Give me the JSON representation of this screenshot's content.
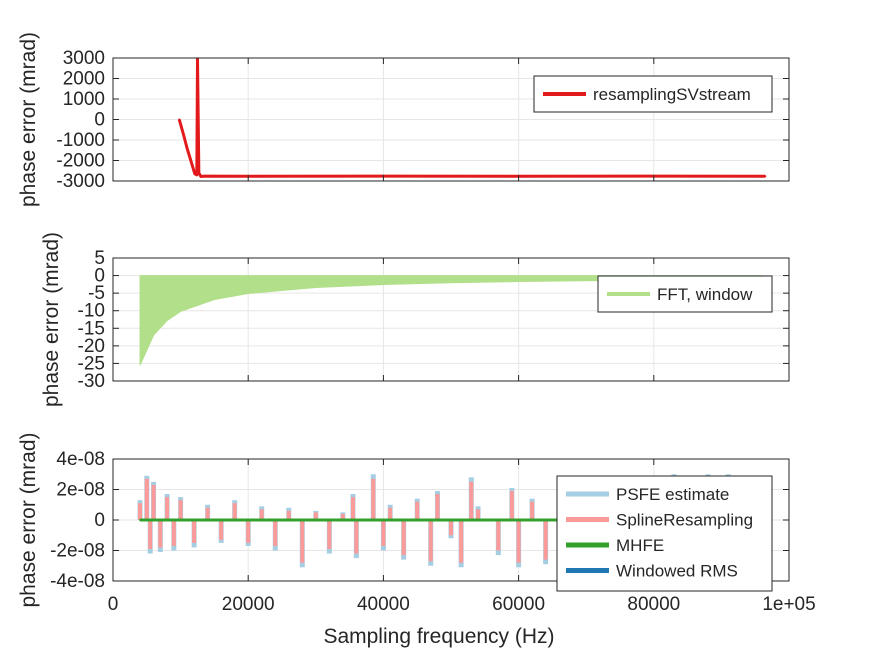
{
  "chart_data": [
    {
      "type": "line",
      "ylabel": "phase error (mrad)",
      "xlabel": "",
      "xlim": [
        0,
        100000
      ],
      "ylim": [
        -3000,
        3000
      ],
      "yticks": [
        3000,
        2000,
        1000,
        0,
        -1000,
        -2000,
        -3000
      ],
      "yticklabels": [
        "3000",
        "2000",
        "1000",
        "0",
        "-1000",
        "-2000",
        "-3000"
      ],
      "grid": true,
      "legend_position": "top-right",
      "series": [
        {
          "name": "resamplingSVstream",
          "color": "#e31a1c",
          "x": [
            9800,
            10400,
            11000,
            11600,
            12100,
            12400,
            12500,
            12700,
            13000,
            13500,
            20000,
            40000,
            60000,
            80000,
            96500
          ],
          "y": [
            0,
            -700,
            -1450,
            -2100,
            -2650,
            -2700,
            2950,
            -2600,
            -2780,
            -2760,
            -2770,
            -2760,
            -2770,
            -2760,
            -2770
          ]
        }
      ]
    },
    {
      "type": "area",
      "ylabel": "phase error (mrad)",
      "xlabel": "",
      "xlim": [
        0,
        100000
      ],
      "ylim": [
        -30,
        5
      ],
      "yticks": [
        5,
        0,
        -5,
        -10,
        -15,
        -20,
        -25,
        -30
      ],
      "yticklabels": [
        "5",
        "0",
        "-5",
        "-10",
        "-15",
        "-20",
        "-25",
        "-30"
      ],
      "grid": true,
      "legend_position": "right",
      "series": [
        {
          "name": "FFT, window",
          "color": "#b2df8a",
          "x": [
            4000,
            6000,
            8000,
            10000,
            15000,
            20000,
            30000,
            40000,
            50000,
            60000,
            70000,
            80000,
            96000
          ],
          "y": [
            -25.5,
            -17,
            -12.8,
            -10.2,
            -6.8,
            -5.1,
            -3.4,
            -2.55,
            -2.04,
            -1.7,
            -1.46,
            -1.28,
            -1.06
          ]
        }
      ]
    },
    {
      "type": "line",
      "ylabel": "phase error (mrad)",
      "xlabel": "Sampling frequency (Hz)",
      "xlim": [
        0,
        100000
      ],
      "ylim": [
        -4e-08,
        4e-08
      ],
      "xticks": [
        0,
        20000,
        40000,
        60000,
        80000,
        100000
      ],
      "xticklabels": [
        "0",
        "20000",
        "40000",
        "60000",
        "80000",
        "1e+05"
      ],
      "yticks": [
        4e-08,
        2e-08,
        0,
        -2e-08,
        -4e-08
      ],
      "yticklabels": [
        "4e-08",
        "2e-08",
        "0",
        "-2e-08",
        "-4e-08"
      ],
      "grid": true,
      "legend_position": "bottom-right",
      "series": [
        {
          "name": "PSFE estimate",
          "color": "#a6cee3",
          "x": [
            4000,
            5000,
            5500,
            6000,
            7000,
            8000,
            9000,
            10000,
            12000,
            14000,
            16000,
            18000,
            20000,
            22000,
            24000,
            26000,
            28000,
            30000,
            32000,
            34000,
            35500,
            36000,
            38500,
            40000,
            41000,
            43000,
            45000,
            47000,
            48000,
            50000,
            51500,
            53000,
            54000,
            57000,
            59000,
            60000,
            62000,
            64000,
            66000,
            70000,
            75000,
            83000,
            88000,
            91000
          ],
          "y": [
            1.3e-08,
            2.9e-08,
            -2.2e-08,
            2.5e-08,
            -2.1e-08,
            1.7e-08,
            -2e-08,
            1.5e-08,
            -1.8e-08,
            1e-08,
            -1.5e-08,
            1.3e-08,
            -1.7e-08,
            9e-09,
            -2e-08,
            8e-09,
            -3.1e-08,
            6e-09,
            -2.2e-08,
            5e-09,
            1.7e-08,
            -2.5e-08,
            3e-08,
            -2e-08,
            1e-08,
            -2.6e-08,
            1.4e-08,
            -3e-08,
            1.9e-08,
            -1.2e-08,
            -3.1e-08,
            2.8e-08,
            9e-09,
            -2.3e-08,
            2.1e-08,
            -3.1e-08,
            1.4e-08,
            -2.9e-08,
            2.1e-08,
            1.5e-08,
            1.9e-08,
            3e-08,
            3e-08,
            3e-08
          ]
        },
        {
          "name": "SplineResampling",
          "color": "#fb9a99",
          "x": [
            4000,
            5000,
            5500,
            6000,
            7000,
            8000,
            9000,
            10000,
            12000,
            14000,
            16000,
            18000,
            20000,
            22000,
            24000,
            26000,
            28000,
            30000,
            32000,
            34000,
            35500,
            36000,
            38500,
            40000,
            41000,
            43000,
            45000,
            47000,
            48000,
            50000,
            51500,
            53000,
            54000,
            57000,
            59000,
            60000,
            62000,
            64000,
            66000
          ],
          "y": [
            1.1e-08,
            2.7e-08,
            -1.9e-08,
            2.3e-08,
            -1.8e-08,
            1.5e-08,
            -1.7e-08,
            1.3e-08,
            -1.5e-08,
            8e-09,
            -1.3e-08,
            1.1e-08,
            -1.5e-08,
            7e-09,
            -1.7e-08,
            6e-09,
            -2.8e-08,
            5e-09,
            -1.9e-08,
            4e-09,
            1.5e-08,
            -2.2e-08,
            2.7e-08,
            -1.7e-08,
            8e-09,
            -2.3e-08,
            1.2e-08,
            -2.7e-08,
            1.7e-08,
            -1e-08,
            -2.8e-08,
            2.5e-08,
            7e-09,
            -2e-08,
            1.9e-08,
            -2.8e-08,
            1.2e-08,
            -2.6e-08,
            1.9e-08
          ]
        },
        {
          "name": "MHFE",
          "color": "#33a02c",
          "x": [
            4000,
            96000
          ],
          "y": [
            0,
            0
          ]
        },
        {
          "name": "Windowed RMS",
          "color": "#1f78b4",
          "x": [],
          "y": []
        }
      ]
    }
  ]
}
